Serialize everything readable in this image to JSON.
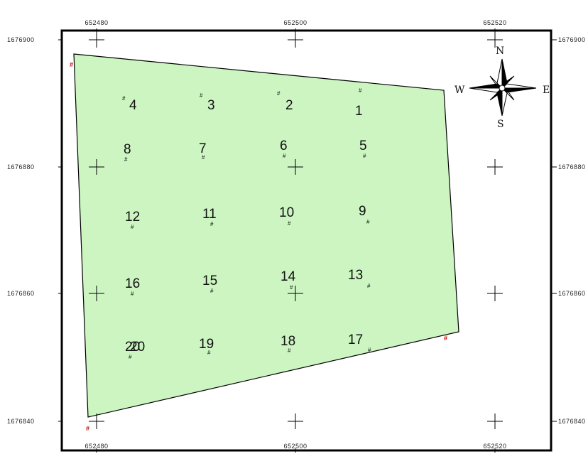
{
  "map": {
    "x_ticks": [
      {
        "label": "652480",
        "value": 652480
      },
      {
        "label": "652500",
        "value": 652500
      },
      {
        "label": "652520",
        "value": 652520
      }
    ],
    "y_ticks_left": [
      {
        "label": "1676900",
        "value": 1676900
      },
      {
        "label": "1676880",
        "value": 1676880
      },
      {
        "label": "1676860",
        "value": 1676860
      },
      {
        "label": "1676840",
        "value": 1676840
      }
    ],
    "y_ticks_right": [
      {
        "label": "1676900",
        "value": 1676900
      },
      {
        "label": "1676880",
        "value": 1676880
      },
      {
        "label": "1676860",
        "value": 1676860
      },
      {
        "label": "1676840",
        "value": 1676840
      }
    ],
    "colors": {
      "parcel_fill": "#ccf5c2",
      "parcel_stroke": "#000000",
      "frame": "#000000",
      "corner_marker": "#c00000"
    },
    "corner_marker_symbol": "#",
    "plot_marker_symbol": "#",
    "compass": {
      "north": "N",
      "south": "S",
      "east": "E",
      "west": "W",
      "icon": "compass-rose-icon"
    },
    "plots": [
      "1",
      "2",
      "3",
      "4",
      "5",
      "6",
      "7",
      "8",
      "9",
      "10",
      "11",
      "12",
      "13",
      "14",
      "15",
      "16",
      "17",
      "18",
      "19",
      "20"
    ]
  }
}
